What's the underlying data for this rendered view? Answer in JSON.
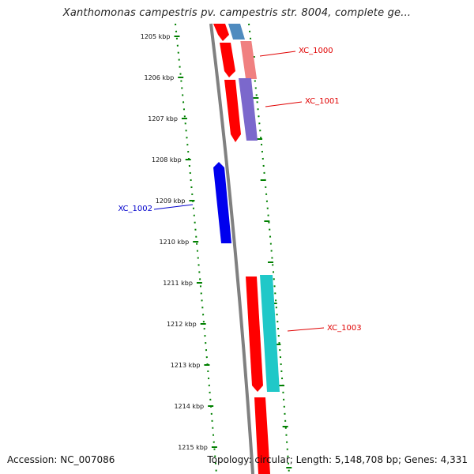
{
  "title": "Xanthomonas campestris pv. campestris str. 8004, complete ge...",
  "footer": {
    "accession": "Accession: NC_007086",
    "summary": "Topology: circular; Length: 5,148,708 bp; Genes: 4,331"
  },
  "ticks": [
    {
      "label": "1205 kbp"
    },
    {
      "label": "1206 kbp"
    },
    {
      "label": "1207 kbp"
    },
    {
      "label": "1208 kbp"
    },
    {
      "label": "1209 kbp"
    },
    {
      "label": "1210 kbp"
    },
    {
      "label": "1211 kbp"
    },
    {
      "label": "1212 kbp"
    },
    {
      "label": "1213 kbp"
    },
    {
      "label": "1214 kbp"
    },
    {
      "label": "1215 kbp"
    }
  ],
  "gene_labels": [
    {
      "text": "XC_1000",
      "color": "#e00000"
    },
    {
      "text": "XC_1001",
      "color": "#e00000"
    },
    {
      "text": "XC_1002",
      "color": "#0000cc"
    },
    {
      "text": "XC_1003",
      "color": "#e00000"
    }
  ],
  "colors": {
    "backbone": "#808080",
    "tick": "#008000",
    "gene_red": "#ff0000",
    "gene_blue": "#0000ee",
    "gene_steelblue": "#4f8bbf",
    "gene_pink": "#f08080",
    "gene_purple": "#7b68cc",
    "gene_cyan": "#20c8c8"
  }
}
